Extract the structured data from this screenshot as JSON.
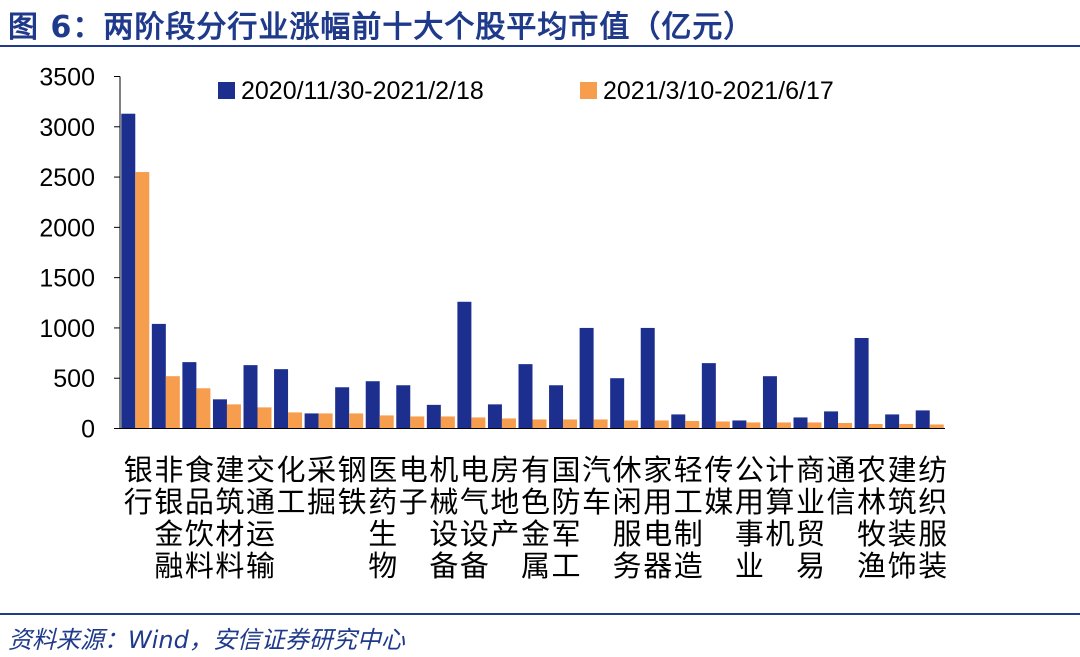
{
  "figure": {
    "title": "图 6：两阶段分行业涨幅前十大个股平均市值（亿元）",
    "source": "资料来源：Wind，安信证券研究中心"
  },
  "colors": {
    "series_1": "#1C2F8F",
    "series_2": "#F79D4E",
    "title": "#1F3A8A"
  },
  "chart_data": {
    "type": "bar",
    "ylim": [
      0,
      3500
    ],
    "yticks": [
      0,
      500,
      1000,
      1500,
      2000,
      2500,
      3000,
      3500
    ],
    "legend_position": "top",
    "grid": false,
    "categories": [
      "银行",
      "非银金融",
      "食品饮料",
      "建筑材料",
      "交通运输",
      "化工",
      "采掘",
      "钢铁",
      "医药生物",
      "电子",
      "机械设备",
      "电气设备",
      "房地产",
      "有色金属",
      "国防军工",
      "汽车",
      "休闲服务",
      "家用电器",
      "轻工制造",
      "传媒",
      "公用事业",
      "计算机",
      "商业贸易",
      "通信",
      "农林牧渔",
      "建筑装饰",
      "纺织服装"
    ],
    "series": [
      {
        "name": "2020/11/30-2021/2/18",
        "values": [
          3130,
          1040,
          660,
          290,
          630,
          590,
          150,
          410,
          470,
          430,
          235,
          1260,
          240,
          640,
          430,
          1000,
          500,
          1000,
          140,
          650,
          80,
          520,
          110,
          170,
          900,
          140,
          180
        ]
      },
      {
        "name": "2021/3/10-2021/6/17",
        "values": [
          2550,
          520,
          400,
          240,
          210,
          160,
          150,
          150,
          130,
          120,
          120,
          110,
          100,
          90,
          90,
          90,
          80,
          80,
          75,
          70,
          60,
          60,
          60,
          55,
          45,
          45,
          40
        ]
      }
    ]
  }
}
